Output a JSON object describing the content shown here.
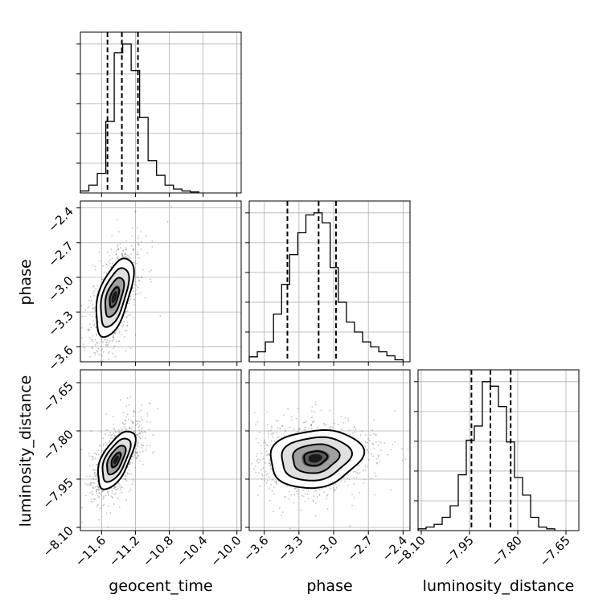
{
  "chart_data": {
    "type": "corner",
    "parameters": [
      "geocent_time",
      "phase",
      "luminosity_distance"
    ],
    "axes": {
      "geocent_time": {
        "label": "geocent_time",
        "range": [
          -11.85,
          -9.95
        ],
        "ticks": [
          -11.6,
          -11.2,
          -10.8,
          -10.4,
          -10.0
        ],
        "tick_labels": [
          "−11.6",
          "−11.2",
          "−10.8",
          "−10.4",
          "−10.0"
        ]
      },
      "phase": {
        "label": "phase",
        "range": [
          -3.73,
          -2.34
        ],
        "ticks": [
          -3.6,
          -3.3,
          -3.0,
          -2.7,
          -2.4
        ],
        "tick_labels": [
          "−3.6",
          "−3.3",
          "−3.0",
          "−2.7",
          "−2.4"
        ]
      },
      "luminosity_distance": {
        "label": "luminosity_distance",
        "range": [
          -8.11,
          -7.61
        ],
        "ticks": [
          -8.1,
          -7.95,
          -7.8,
          -7.65
        ],
        "tick_labels": [
          "−8.10",
          "−7.95",
          "−7.80",
          "−7.65"
        ]
      }
    },
    "histograms": {
      "geocent_time": {
        "edges": [
          -11.85,
          -11.75,
          -11.65,
          -11.55,
          -11.45,
          -11.35,
          -11.25,
          -11.15,
          -11.05,
          -10.95,
          -10.85,
          -10.75,
          -10.65,
          -10.55,
          -10.45
        ],
        "counts": [
          2,
          8,
          20,
          73,
          143,
          152,
          125,
          77,
          33,
          18,
          8,
          4,
          2,
          1
        ],
        "quantiles": [
          -11.53,
          -11.36,
          -11.17
        ]
      },
      "phase": {
        "edges": [
          -3.73,
          -3.66,
          -3.59,
          -3.52,
          -3.45,
          -3.38,
          -3.31,
          -3.24,
          -3.17,
          -3.1,
          -3.03,
          -2.96,
          -2.89,
          -2.82,
          -2.75,
          -2.68,
          -2.61,
          -2.54,
          -2.47,
          -2.4
        ],
        "counts": [
          5,
          10,
          20,
          48,
          78,
          108,
          130,
          148,
          150,
          140,
          95,
          60,
          40,
          30,
          20,
          15,
          10,
          6,
          2
        ],
        "quantiles": [
          -3.4,
          -3.13,
          -2.98
        ]
      },
      "luminosity_distance": {
        "edges": [
          -8.11,
          -8.085,
          -8.06,
          -8.035,
          -8.01,
          -7.985,
          -7.96,
          -7.935,
          -7.91,
          -7.885,
          -7.86,
          -7.835,
          -7.81,
          -7.785,
          -7.76,
          -7.735,
          -7.71,
          -7.685
        ],
        "counts": [
          2,
          4,
          7,
          15,
          28,
          63,
          102,
          118,
          168,
          163,
          140,
          100,
          60,
          40,
          15,
          4,
          2
        ],
        "quantiles": [
          -7.944,
          -7.885,
          -7.822
        ]
      }
    },
    "joint": [
      {
        "x": "geocent_time",
        "y": "phase",
        "center": [
          -11.45,
          -3.17
        ],
        "sigma": [
          0.11,
          0.17
        ],
        "rho": 0.55
      },
      {
        "x": "geocent_time",
        "y": "luminosity_distance",
        "center": [
          -11.43,
          -7.89
        ],
        "sigma": [
          0.11,
          0.045
        ],
        "rho": 0.62
      },
      {
        "x": "phase",
        "y": "luminosity_distance",
        "center": [
          -3.16,
          -7.885
        ],
        "sigma": [
          0.2,
          0.045
        ],
        "rho": 0.15
      }
    ],
    "contour_levels": [
      0.5,
      1.0,
      1.5,
      2.0
    ],
    "grid": true
  }
}
